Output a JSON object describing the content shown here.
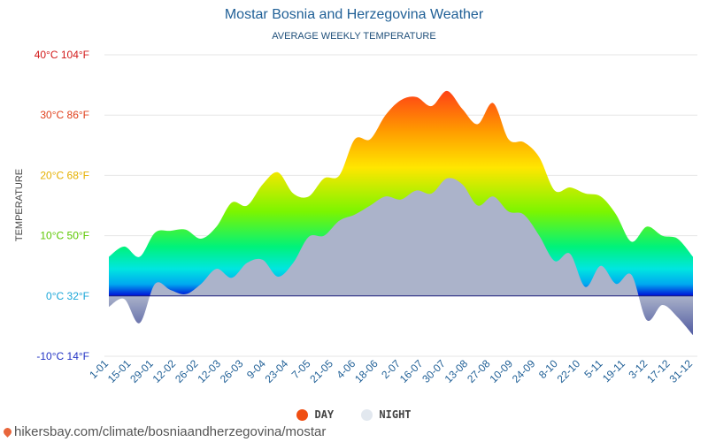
{
  "header": {
    "title": "Mostar Bosnia and Herzegovina Weather",
    "subtitle": "AVERAGE WEEKLY TEMPERATURE"
  },
  "legend": {
    "day_label": "DAY",
    "night_label": "NIGHT",
    "day_color": "#f04e12",
    "night_color": "#e2e8ef"
  },
  "footer": {
    "source": "hikersbay.com/climate/bosniaandherzegovina/mostar"
  },
  "chart_data": {
    "type": "area",
    "ylabel": "TEMPERATURE",
    "ylim": [
      -10,
      40
    ],
    "grid": true,
    "legend_position": "bottom",
    "y_ticks": [
      {
        "value": 40,
        "label": "40°C 104°F",
        "color": "#d21a1a"
      },
      {
        "value": 30,
        "label": "30°C 86°F",
        "color": "#e0401c"
      },
      {
        "value": 20,
        "label": "20°C 68°F",
        "color": "#e5b000"
      },
      {
        "value": 10,
        "label": "10°C 50°F",
        "color": "#5cc700"
      },
      {
        "value": 0,
        "label": "0°C 32°F",
        "color": "#1aa6d8"
      },
      {
        "value": -10,
        "label": "-10°C 14°F",
        "color": "#2233c4"
      }
    ],
    "x_labels": [
      "1-01",
      "15-01",
      "29-01",
      "12-02",
      "26-02",
      "12-03",
      "26-03",
      "9-04",
      "23-04",
      "7-05",
      "21-05",
      "4-06",
      "18-06",
      "2-07",
      "16-07",
      "30-07",
      "13-08",
      "27-08",
      "10-09",
      "24-09",
      "8-10",
      "22-10",
      "5-11",
      "19-11",
      "3-12",
      "17-12",
      "31-12"
    ],
    "series": [
      {
        "name": "DAY",
        "values": [
          6.5,
          8.2,
          6.5,
          10.5,
          10.8,
          11.0,
          9.5,
          11.5,
          15.5,
          15.0,
          18.5,
          20.5,
          17.0,
          16.5,
          19.5,
          20.0,
          26.0,
          26.0,
          30.0,
          32.5,
          33.0,
          31.5,
          34.0,
          31.0,
          28.5,
          32.0,
          26.0,
          25.5,
          23.0,
          17.5,
          18.0,
          17.0,
          16.5,
          13.5,
          9.0,
          11.5,
          10.0,
          9.5,
          6.5
        ]
      },
      {
        "name": "NIGHT",
        "values": [
          -1.8,
          -0.5,
          -4.5,
          2.0,
          1.0,
          0.3,
          2.0,
          4.5,
          3.0,
          5.5,
          6.0,
          3.2,
          5.5,
          9.8,
          10.0,
          12.5,
          13.5,
          15.0,
          16.5,
          16.0,
          17.5,
          17.0,
          19.5,
          18.5,
          15.0,
          16.5,
          14.0,
          13.5,
          10.0,
          5.8,
          7.0,
          1.5,
          5.0,
          2.0,
          3.5,
          -4.0,
          -1.5,
          -3.5,
          -6.5
        ]
      }
    ]
  }
}
